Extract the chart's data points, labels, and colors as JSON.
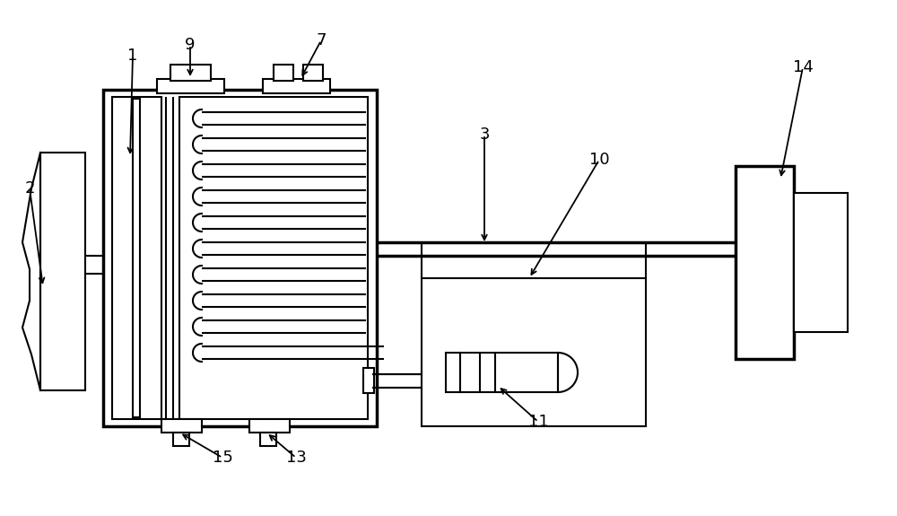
{
  "bg_color": "#ffffff",
  "line_color": "#000000",
  "lw": 1.5,
  "lw_thick": 2.5,
  "lw_thin": 1.2
}
